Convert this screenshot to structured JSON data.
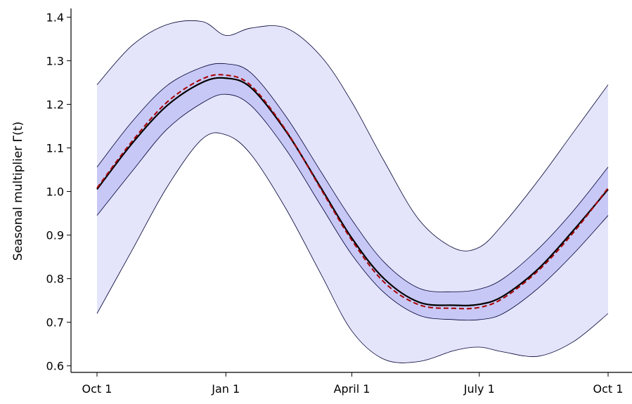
{
  "chart_data": {
    "type": "line",
    "title": "",
    "xlabel": "",
    "ylabel": "Seasonal multiplier Γ(t)",
    "xlim": [
      0,
      365
    ],
    "ylim": [
      0.585,
      1.42
    ],
    "grid": false,
    "x_ticks": [
      {
        "value": 0,
        "label": "Oct 1"
      },
      {
        "value": 92,
        "label": "Jan 1"
      },
      {
        "value": 182,
        "label": "April 1"
      },
      {
        "value": 273,
        "label": "July 1"
      },
      {
        "value": 365,
        "label": "Oct 1"
      }
    ],
    "y_ticks": [
      {
        "value": 0.6,
        "label": "0.6"
      },
      {
        "value": 0.7,
        "label": "0.7"
      },
      {
        "value": 0.8,
        "label": "0.8"
      },
      {
        "value": 0.9,
        "label": "0.9"
      },
      {
        "value": 1.0,
        "label": "1.0"
      },
      {
        "value": 1.1,
        "label": "1.1"
      },
      {
        "value": 1.2,
        "label": "1.2"
      },
      {
        "value": 1.3,
        "label": "1.3"
      },
      {
        "value": 1.4,
        "label": "1.4"
      }
    ],
    "x": [
      0,
      25,
      50,
      75,
      92,
      110,
      135,
      160,
      182,
      205,
      230,
      255,
      273,
      290,
      315,
      340,
      365
    ],
    "series": [
      {
        "role": "outer_band_upper",
        "color": "#000033",
        "values": [
          1.245,
          1.335,
          1.383,
          1.39,
          1.358,
          1.375,
          1.375,
          1.31,
          1.205,
          1.07,
          0.935,
          0.87,
          0.872,
          0.925,
          1.025,
          1.135,
          1.245
        ]
      },
      {
        "role": "outer_band_lower",
        "color": "#000033",
        "values": [
          0.72,
          0.865,
          1.01,
          1.12,
          1.13,
          1.085,
          0.96,
          0.81,
          0.68,
          0.615,
          0.61,
          0.635,
          0.643,
          0.632,
          0.622,
          0.655,
          0.72
        ]
      },
      {
        "role": "inner_band_upper",
        "color": "#000033",
        "values": [
          1.056,
          1.16,
          1.243,
          1.285,
          1.293,
          1.272,
          1.172,
          1.045,
          0.935,
          0.838,
          0.778,
          0.77,
          0.776,
          0.8,
          0.868,
          0.955,
          1.056
        ]
      },
      {
        "role": "inner_band_lower",
        "color": "#000033",
        "values": [
          0.945,
          1.046,
          1.143,
          1.203,
          1.223,
          1.197,
          1.096,
          0.967,
          0.855,
          0.768,
          0.716,
          0.706,
          0.706,
          0.72,
          0.778,
          0.856,
          0.945
        ]
      },
      {
        "role": "median",
        "color": "#000000",
        "values": [
          1.005,
          1.11,
          1.197,
          1.25,
          1.26,
          1.238,
          1.138,
          1.008,
          0.893,
          0.8,
          0.746,
          0.739,
          0.741,
          0.76,
          0.822,
          0.91,
          1.005
        ]
      },
      {
        "role": "reference",
        "color": "#aa0000",
        "values": [
          1.008,
          1.115,
          1.205,
          1.258,
          1.267,
          1.243,
          1.14,
          1.005,
          0.888,
          0.792,
          0.74,
          0.732,
          0.734,
          0.755,
          0.818,
          0.905,
          1.008
        ]
      }
    ],
    "colors": {
      "outer_band": "#e4e4fb",
      "inner_band": "#c8c8f6",
      "band_edge": "#000033",
      "median": "#000000",
      "reference": "#aa0000"
    }
  }
}
